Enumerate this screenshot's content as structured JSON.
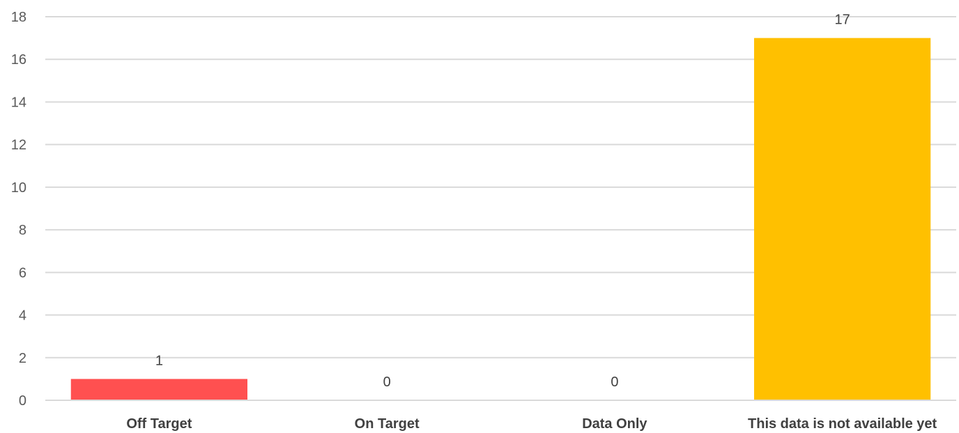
{
  "chart_data": {
    "type": "bar",
    "categories": [
      "Off Target",
      "On Target",
      "Data Only",
      "This data is not available yet"
    ],
    "values": [
      1,
      0,
      0,
      17
    ],
    "colors": [
      "#ff5050",
      "#4472c4",
      "#a5a5a5",
      "#ffc000"
    ],
    "data_labels": [
      "1",
      "0",
      "0",
      "17"
    ],
    "yticks": [
      "0",
      "2",
      "4",
      "6",
      "8",
      "10",
      "12",
      "14",
      "16",
      "18"
    ],
    "ylim": [
      0,
      18
    ],
    "grid": true,
    "legend": "none"
  }
}
